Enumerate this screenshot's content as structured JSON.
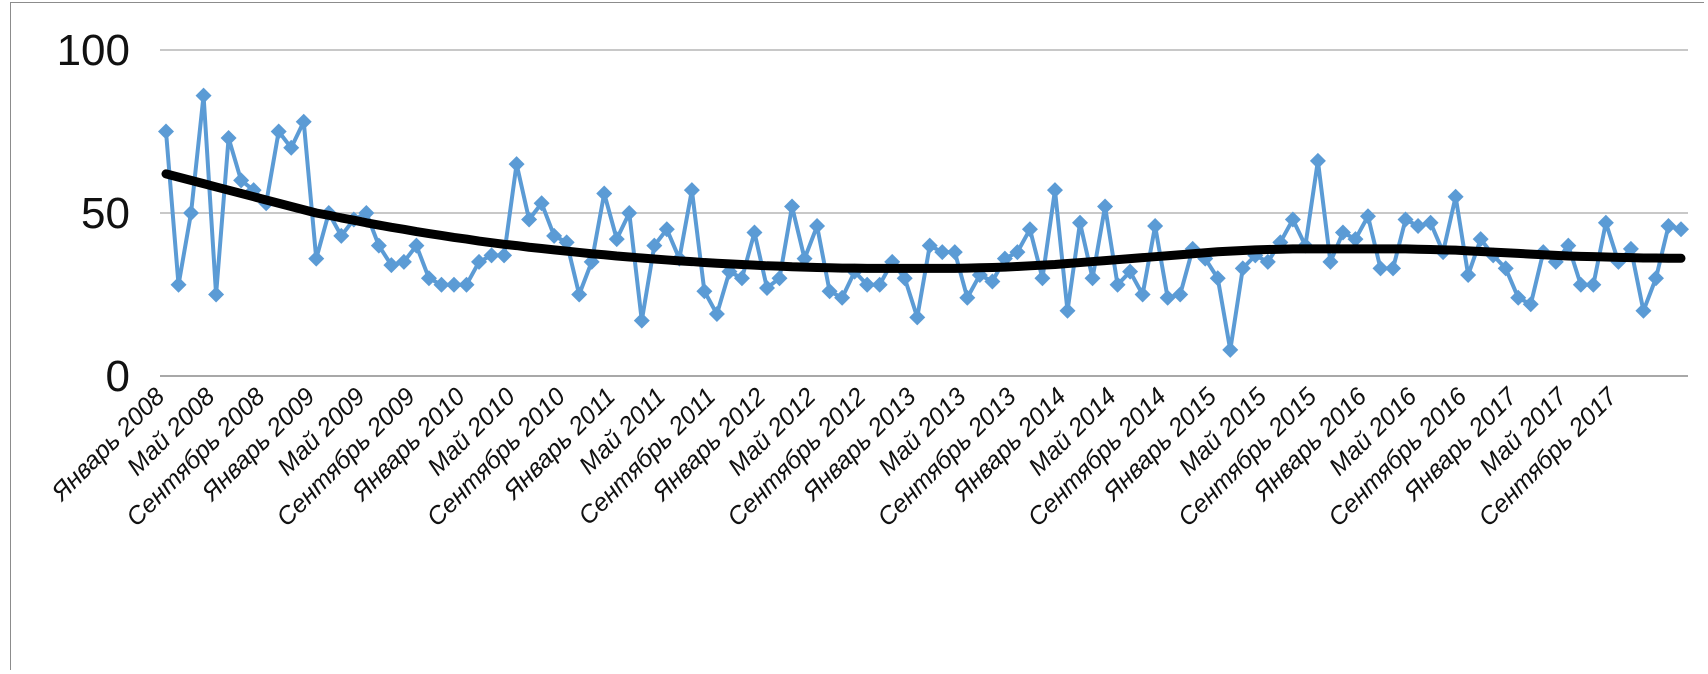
{
  "chart_data": {
    "type": "line",
    "title": "",
    "xlabel": "",
    "ylabel": "",
    "ylim": [
      0,
      100
    ],
    "yticks": [
      "0",
      "50",
      "100"
    ],
    "grid": true,
    "x_tick_labels": [
      "Январь 2008",
      "Май 2008",
      "Сентябрь 2008",
      "Январь 2009",
      "Май 2009",
      "Сентябрь 2009",
      "Январь 2010",
      "Май 2010",
      "Сентябрь 2010",
      "Январь 2011",
      "Май 2011",
      "Сентябрь 2011",
      "Январь 2012",
      "Май 2012",
      "Сентябрь 2012",
      "Январь 2013",
      "Май 2013",
      "Сентябрь 2013",
      "Январь 2014",
      "Май 2014",
      "Сентябрь 2014",
      "Январь 2015",
      "Май 2015",
      "Сентябрь 2015",
      "Январь 2016",
      "Май 2016",
      "Сентябрь 2016",
      "Январь 2017",
      "Май 2017",
      "Сентябрь 2017"
    ],
    "x_tick_interval_months": 4,
    "series": [
      {
        "color": "#5b9bd5",
        "marker": "diamond",
        "values": [
          75,
          28,
          50,
          86,
          25,
          73,
          60,
          57,
          53,
          75,
          70,
          78,
          36,
          50,
          43,
          48,
          50,
          40,
          34,
          35,
          40,
          30,
          28,
          28,
          28,
          35,
          37,
          37,
          65,
          48,
          53,
          43,
          41,
          25,
          35,
          56,
          42,
          50,
          17,
          40,
          45,
          36,
          57,
          26,
          19,
          32,
          30,
          44,
          27,
          30,
          52,
          36,
          46,
          26,
          24,
          32,
          28,
          28,
          35,
          30,
          18,
          40,
          38,
          38,
          24,
          31,
          29,
          36,
          38,
          45,
          30,
          57,
          20,
          47,
          30,
          52,
          28,
          32,
          25,
          46,
          24,
          25,
          39,
          36,
          30,
          8,
          33,
          37,
          35,
          41,
          48,
          40,
          66,
          35,
          44,
          42,
          49,
          33,
          33,
          48,
          46,
          47,
          38,
          55,
          31,
          42,
          37,
          33,
          24,
          22,
          38,
          35,
          40,
          28,
          28,
          47,
          35,
          39,
          20,
          30,
          46,
          45
        ]
      },
      {
        "color": "#000000",
        "marker": "none",
        "values": [
          62,
          61,
          60,
          59,
          58,
          57,
          56,
          55,
          54,
          53,
          52,
          51,
          50,
          49.3,
          48.5,
          47.8,
          47,
          46.3,
          45.6,
          45,
          44.3,
          43.7,
          43.1,
          42.5,
          42,
          41.4,
          40.9,
          40.4,
          40,
          39.5,
          39.1,
          38.7,
          38.3,
          37.9,
          37.5,
          37.2,
          36.8,
          36.5,
          36.2,
          35.9,
          35.6,
          35.3,
          35.1,
          34.8,
          34.6,
          34.4,
          34.2,
          34,
          33.8,
          33.7,
          33.5,
          33.4,
          33.3,
          33.2,
          33.1,
          33.1,
          33,
          33,
          33,
          33,
          33,
          33,
          33,
          33,
          33.1,
          33.2,
          33.3,
          33.4,
          33.6,
          33.8,
          34,
          34.2,
          34.5,
          34.8,
          35.1,
          35.4,
          35.7,
          36,
          36.3,
          36.6,
          36.9,
          37.2,
          37.5,
          37.8,
          38.1,
          38.3,
          38.5,
          38.7,
          38.8,
          38.9,
          39,
          39,
          39,
          39,
          39,
          39,
          39,
          39,
          39,
          39,
          38.9,
          38.8,
          38.7,
          38.6,
          38.4,
          38.2,
          38,
          37.8,
          37.6,
          37.4,
          37.2,
          37,
          36.8,
          36.7,
          36.6,
          36.5,
          36.4,
          36.3,
          36.2,
          36.2,
          36.1,
          36.1
        ]
      }
    ]
  }
}
